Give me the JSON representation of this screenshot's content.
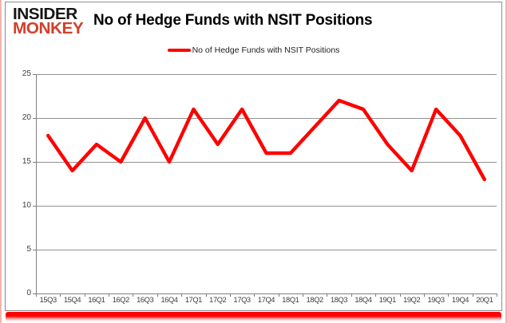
{
  "logo": {
    "line1": "INSIDER",
    "line2": "MONKEY"
  },
  "header": {
    "title": "No of Hedge Funds with NSIT Positions"
  },
  "legend": {
    "label": "No of Hedge Funds with NSIT Positions"
  },
  "chart_data": {
    "type": "line",
    "title": "No of Hedge Funds with NSIT Positions",
    "series_name": "No of Hedge Funds with NSIT Positions",
    "categories": [
      "15Q3",
      "15Q4",
      "16Q1",
      "16Q2",
      "16Q3",
      "16Q4",
      "17Q1",
      "17Q2",
      "17Q3",
      "17Q4",
      "18Q1",
      "18Q2",
      "18Q3",
      "18Q4",
      "19Q1",
      "19Q2",
      "19Q3",
      "19Q4",
      "20Q1"
    ],
    "values": [
      18,
      14,
      17,
      15,
      20,
      15,
      21,
      17,
      21,
      16,
      16,
      19,
      22,
      21,
      17,
      14,
      21,
      18,
      13
    ],
    "ylim": [
      0,
      25
    ],
    "y_ticks": [
      0,
      5,
      10,
      15,
      20,
      25
    ],
    "grid": true,
    "legend_position": "top-center",
    "line_color": "#fe0000"
  },
  "colors": {
    "line": "#fe0000",
    "logo_red": "#d0402b",
    "gridline": "#919191",
    "axis": "#7f7f7f",
    "tick_text": "#3d3d3d",
    "card_border": "#8e8e8e",
    "edge_pink": "#f1b6ac",
    "bottom_bar": "#ff0000"
  }
}
